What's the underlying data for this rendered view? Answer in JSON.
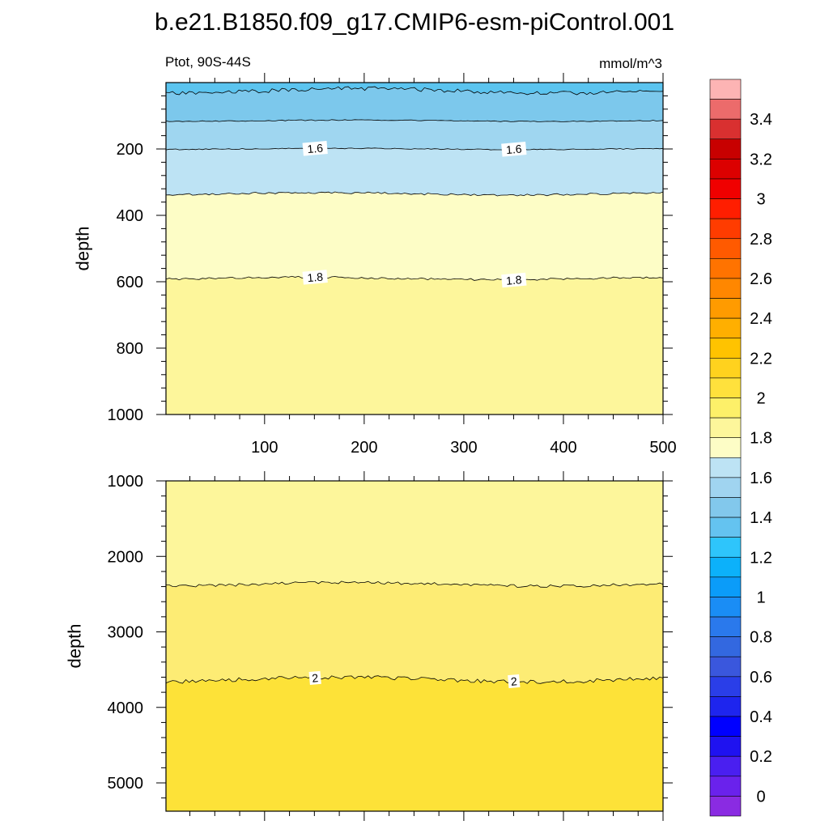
{
  "chart_data": [
    {
      "type": "contour",
      "title": "b.e21.B1850.f09_g17.CMIP6-esm-piControl.001",
      "left_string": "Ptot, 90S-44S",
      "right_string": "mmol/m^3",
      "xlabel": "",
      "ylabel": "depth",
      "xlim": [
        1,
        500
      ],
      "ylim": [
        0,
        1000
      ],
      "y_reversed": true,
      "x_ticks": [
        "100",
        "200",
        "300",
        "400",
        "500"
      ],
      "y_ticks": [
        "200",
        "400",
        "600",
        "800",
        "1000"
      ],
      "contour_levels": [
        {
          "value": 1.5,
          "mean_depth": 25,
          "amplitude": 12,
          "labeled": false
        },
        {
          "value": 1.55,
          "mean_depth": 115,
          "amplitude": 3,
          "labeled": false
        },
        {
          "value": 1.6,
          "mean_depth": 200,
          "amplitude": 3,
          "labeled": true,
          "label": "1.6"
        },
        {
          "value": 1.65,
          "mean_depth": 335,
          "amplitude": 6,
          "labeled": false
        },
        {
          "value": 1.8,
          "mean_depth": 590,
          "amplitude": 6,
          "labeled": true,
          "label": "1.8"
        }
      ],
      "fill_bands": [
        {
          "from_depth": 0,
          "to_depth": 25,
          "color": "#5bc4ef"
        },
        {
          "from_depth": 25,
          "to_depth": 115,
          "color": "#7cc8ec"
        },
        {
          "from_depth": 115,
          "to_depth": 200,
          "color": "#9fd6f0"
        },
        {
          "from_depth": 200,
          "to_depth": 335,
          "color": "#bde3f4"
        },
        {
          "from_depth": 335,
          "to_depth": 590,
          "color": "#fdfdc6"
        },
        {
          "from_depth": 590,
          "to_depth": 1000,
          "color": "#fdf69b"
        }
      ]
    },
    {
      "type": "contour",
      "xlabel": "",
      "ylabel": "depth",
      "xlim": [
        1,
        500
      ],
      "ylim": [
        1000,
        5375
      ],
      "y_reversed": true,
      "y_ticks": [
        "1000",
        "2000",
        "3000",
        "4000",
        "5000"
      ],
      "contour_levels": [
        {
          "value": 1.9,
          "mean_depth": 2370,
          "amplitude": 40,
          "labeled": false
        },
        {
          "value": 2.0,
          "mean_depth": 3630,
          "amplitude": 50,
          "labeled": true,
          "label": "2"
        }
      ],
      "fill_bands": [
        {
          "from_depth": 1000,
          "to_depth": 2370,
          "color": "#fdf69b"
        },
        {
          "from_depth": 2370,
          "to_depth": 3630,
          "color": "#fdec74"
        },
        {
          "from_depth": 3630,
          "to_depth": 5375,
          "color": "#fde238"
        }
      ]
    }
  ],
  "colorbar": {
    "colors": [
      "#fdb4b4",
      "#ec6b6b",
      "#d93030",
      "#c80000",
      "#dc0000",
      "#f00000",
      "#ff1e00",
      "#ff3c00",
      "#ff5a00",
      "#ff7300",
      "#ff8700",
      "#ff9b00",
      "#ffaf00",
      "#ffc300",
      "#ffd21e",
      "#ffe13c",
      "#fdf069",
      "#fdf69b",
      "#fdfdc6",
      "#bde3f4",
      "#a0d4f0",
      "#82c8ec",
      "#64c3f0",
      "#2ec5fb",
      "#0cb1fa",
      "#0b9cf9",
      "#1a8df5",
      "#2a79ec",
      "#3368e0",
      "#3a57dd",
      "#2a3ee8",
      "#1e25ee",
      "#0000ff",
      "#1f12f0",
      "#4a1ff0",
      "#6a22ec",
      "#8a2be2"
    ],
    "labels": [
      "3.4",
      "3.2",
      "3",
      "2.8",
      "2.6",
      "2.4",
      "2.2",
      "2",
      "1.8",
      "1.6",
      "1.4",
      "1.2",
      "1",
      "0.8",
      "0.6",
      "0.4",
      "0.2",
      "0"
    ]
  }
}
